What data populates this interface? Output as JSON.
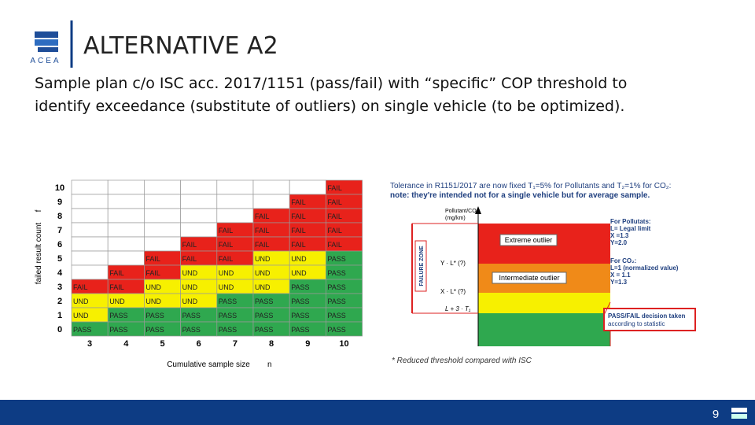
{
  "header": {
    "logo": "ACEA",
    "title": "ALTERNATIVE A2"
  },
  "subtitle": [
    "Sample plan c/o ISC acc. 2017/1151 (pass/fail) with “specific” COP threshold to",
    "identify exceedance (substitute of outliers) on single vehicle (to be optimized)."
  ],
  "table": {
    "y_label": "failed result count",
    "y_symbol": "f",
    "x_label": "Cumulative sample size",
    "x_symbol": "n",
    "row_labels": [
      "10",
      "9",
      "8",
      "7",
      "6",
      "5",
      "4",
      "3",
      "2",
      "1",
      "0"
    ],
    "col_labels": [
      "3",
      "4",
      "5",
      "6",
      "7",
      "8",
      "9",
      "10"
    ],
    "status_colors": {
      "FAIL": "#e8221b",
      "UND": "#f7f000",
      "PASS": "#2fa84f"
    },
    "rows": [
      [
        null,
        null,
        null,
        null,
        null,
        null,
        null,
        "FAIL"
      ],
      [
        null,
        null,
        null,
        null,
        null,
        null,
        "FAIL",
        "FAIL"
      ],
      [
        null,
        null,
        null,
        null,
        null,
        "FAIL",
        "FAIL",
        "FAIL"
      ],
      [
        null,
        null,
        null,
        null,
        "FAIL",
        "FAIL",
        "FAIL",
        "FAIL"
      ],
      [
        null,
        null,
        null,
        "FAIL",
        "FAIL",
        "FAIL",
        "FAIL",
        "FAIL"
      ],
      [
        null,
        null,
        "FAIL",
        "FAIL",
        "FAIL",
        "UND",
        "UND",
        "PASS"
      ],
      [
        null,
        "FAIL",
        "FAIL",
        "UND",
        "UND",
        "UND",
        "UND",
        "PASS"
      ],
      [
        "FAIL",
        "FAIL",
        "UND",
        "UND",
        "UND",
        "UND",
        "PASS",
        "PASS"
      ],
      [
        "UND",
        "UND",
        "UND",
        "UND",
        "PASS",
        "PASS",
        "PASS",
        "PASS"
      ],
      [
        "UND",
        "PASS",
        "PASS",
        "PASS",
        "PASS",
        "PASS",
        "PASS",
        "PASS"
      ],
      [
        "PASS",
        "PASS",
        "PASS",
        "PASS",
        "PASS",
        "PASS",
        "PASS",
        "PASS"
      ]
    ]
  },
  "diagram": {
    "note1": "Tolerance in R1151/2017 are now fixed T₁=5% for Pollutants and T₂=1% for CO₂:",
    "note2": "note: they're intended not for a single vehicle but for average sample.",
    "axis_label": "Pollutant/CO₂",
    "axis_unit": "(mg/km)",
    "failure_zone": "FAILURE ZONE",
    "extreme": "Extreme outlier",
    "intermediate": "Intermediate outlier",
    "y_level": "Y · L* (?)",
    "x_level": "X · L* (?)",
    "l_level": "L + 3 · T₁",
    "pollutants": [
      "For Pollutats:",
      "L= Legal limit",
      "X =1.3",
      "Y=2.0"
    ],
    "co2": [
      "For CO₂:",
      "L=1 (normalized value)",
      "X = 1.1",
      "Y=1.3"
    ],
    "decision": [
      "PASS/FAIL decision taken",
      "according to statistic"
    ],
    "footnote": "* Reduced threshold compared with ISC"
  },
  "footer": {
    "page": "9"
  }
}
